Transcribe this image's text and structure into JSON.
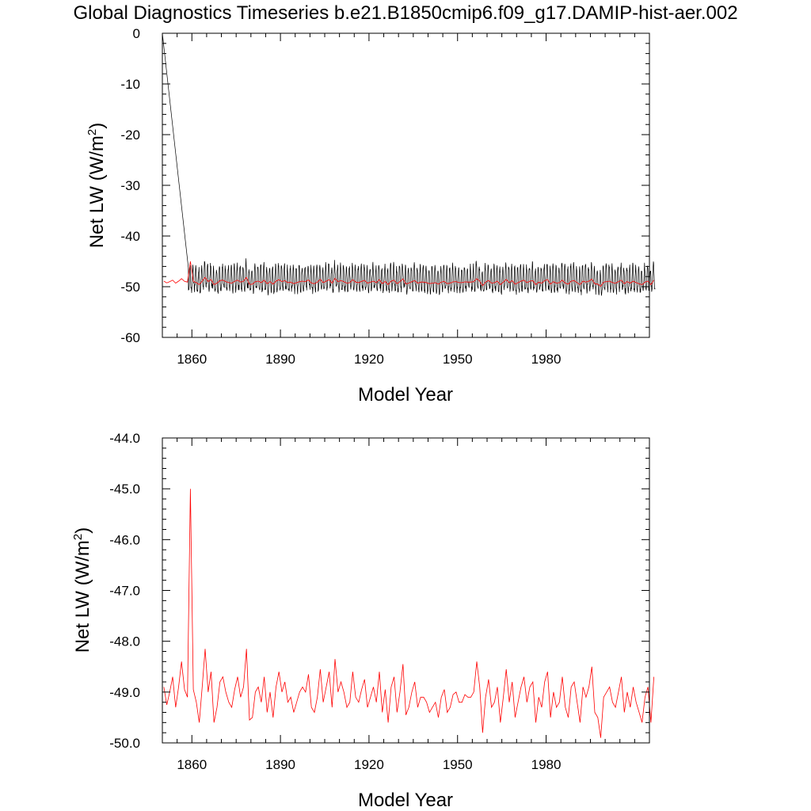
{
  "title": "Global Diagnostics Timeseries b.e21.B1850cmip6.f09_g17.DAMIP-hist-aer.002",
  "chart_data": [
    {
      "type": "line",
      "xlabel": "Model Year",
      "ylabel": {
        "base": "Net LW (W/m",
        "sup": "2",
        "end": ")"
      },
      "xlim": [
        1850,
        2015
      ],
      "ylim": [
        -60,
        0
      ],
      "xticks": [
        1860,
        1890,
        1920,
        1950,
        1980
      ],
      "yticks": [
        0,
        -10,
        -20,
        -30,
        -40,
        -50,
        -60
      ],
      "yticks_labels": [
        "0",
        "-10",
        "-20",
        "-30",
        "-40",
        "-50",
        "-60"
      ],
      "series": [
        {
          "kind": "monthly",
          "color": "#000000",
          "spike": {
            "x": [
              1850.0,
              1858.8
            ],
            "y": [
              0,
              -46.2
            ]
          },
          "baseline": -49.2,
          "amp_up": 3.2,
          "amp_down": 1.6
        },
        {
          "kind": "annual",
          "color": "#ff0000"
        }
      ]
    },
    {
      "type": "line",
      "xlabel": "Model Year",
      "ylabel": {
        "base": "Net LW (W/m",
        "sup": "2",
        "end": ")"
      },
      "xlim": [
        1850,
        2015
      ],
      "ylim": [
        -50,
        -44
      ],
      "xticks": [
        1860,
        1890,
        1920,
        1950,
        1980
      ],
      "yticks": [
        -44,
        -45,
        -46,
        -47,
        -48,
        -49,
        -50
      ],
      "yticks_labels": [
        "-44.0",
        "-45.0",
        "-46.0",
        "-47.0",
        "-48.0",
        "-49.0",
        "-50.0"
      ],
      "series": [
        {
          "name": "annual",
          "color": "#ff0000",
          "x_start": 1850,
          "x_step": 1,
          "values": [
            -48.9,
            -49.25,
            -49.0,
            -48.7,
            -49.3,
            -48.9,
            -48.4,
            -48.95,
            -49.1,
            -45.0,
            -48.95,
            -49.2,
            -49.6,
            -48.9,
            -48.15,
            -49.0,
            -48.6,
            -49.6,
            -49.3,
            -48.8,
            -48.7,
            -49.0,
            -49.2,
            -49.3,
            -48.95,
            -48.7,
            -49.1,
            -48.9,
            -48.15,
            -49.55,
            -49.5,
            -49.0,
            -48.9,
            -49.2,
            -48.7,
            -49.4,
            -49.0,
            -49.5,
            -48.9,
            -48.6,
            -49.0,
            -48.8,
            -49.2,
            -49.1,
            -49.4,
            -49.2,
            -49.0,
            -48.9,
            -49.0,
            -48.65,
            -49.3,
            -49.4,
            -49.1,
            -48.55,
            -49.2,
            -48.9,
            -48.6,
            -49.3,
            -48.35,
            -49.0,
            -48.8,
            -49.0,
            -49.3,
            -49.2,
            -48.6,
            -49.1,
            -49.2,
            -48.95,
            -48.75,
            -49.3,
            -49.1,
            -48.9,
            -49.2,
            -48.6,
            -49.4,
            -48.95,
            -49.6,
            -48.9,
            -48.7,
            -49.4,
            -49.0,
            -48.45,
            -49.45,
            -49.3,
            -49.0,
            -48.8,
            -49.3,
            -49.1,
            -49.1,
            -49.2,
            -49.4,
            -49.3,
            -49.2,
            -49.5,
            -49.1,
            -48.95,
            -49.4,
            -49.3,
            -49.05,
            -49.0,
            -49.2,
            -49.2,
            -49.05,
            -49.1,
            -49.1,
            -49.0,
            -48.4,
            -48.9,
            -49.8,
            -49.1,
            -48.75,
            -49.3,
            -49.2,
            -48.9,
            -49.6,
            -49.1,
            -48.55,
            -49.2,
            -48.8,
            -49.5,
            -49.2,
            -48.9,
            -48.7,
            -49.2,
            -48.9,
            -48.8,
            -49.6,
            -49.1,
            -49.3,
            -48.8,
            -48.6,
            -49.5,
            -49.0,
            -49.3,
            -49.2,
            -48.7,
            -49.3,
            -49.5,
            -48.9,
            -48.8,
            -49.2,
            -49.6,
            -48.9,
            -49.1,
            -48.9,
            -48.5,
            -49.4,
            -49.5,
            -49.9,
            -49.1,
            -49.0,
            -48.9,
            -49.2,
            -49.3,
            -49.0,
            -48.7,
            -49.4,
            -49.0,
            -49.3,
            -48.9,
            -49.2,
            -49.4,
            -49.6,
            -49.1,
            -48.9,
            -49.6,
            -48.7
          ]
        }
      ]
    }
  ]
}
